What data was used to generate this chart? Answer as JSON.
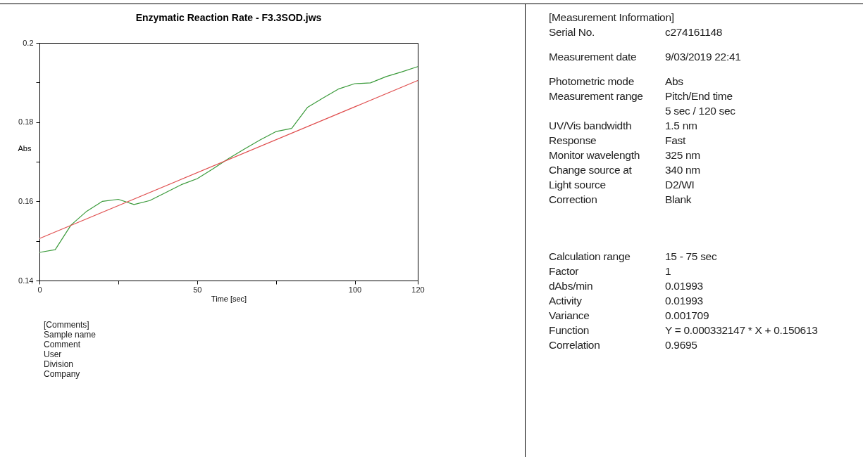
{
  "chart_data": [
    {
      "type": "line",
      "title": "Enzymatic Reaction Rate - F3.3SOD.jws",
      "xlabel": "Time [sec]",
      "ylabel": "Abs",
      "x": [
        0,
        5,
        10,
        15,
        20,
        25,
        30,
        35,
        40,
        45,
        50,
        55,
        60,
        65,
        70,
        75,
        80,
        85,
        90,
        95,
        100,
        105,
        110,
        115,
        120
      ],
      "series": [
        {
          "color": "#3a9a3a",
          "values": [
            0.1471,
            0.1478,
            0.154,
            0.1575,
            0.16,
            0.1605,
            0.1592,
            0.1602,
            0.1622,
            0.1642,
            0.1657,
            0.1682,
            0.1708,
            0.1732,
            0.1755,
            0.1776,
            0.1784,
            0.1837,
            0.1861,
            0.1884,
            0.1897,
            0.1899,
            0.1915,
            0.1927,
            0.194
          ]
        },
        {
          "type": "line",
          "color": "#e05050",
          "x": [
            0,
            120
          ],
          "values": [
            0.1506,
            0.1905
          ]
        }
      ],
      "xlim": [
        0,
        120
      ],
      "xticks": [
        0,
        {
          "value": 25,
          "label": null
        },
        50,
        {
          "value": 75,
          "label": null
        },
        100,
        120
      ],
      "ylim": [
        0.14,
        0.2
      ],
      "yticks": [
        0.14,
        {
          "value": 0.15,
          "label": null
        },
        0.16,
        {
          "value": 0.17,
          "label": null
        },
        0.18,
        {
          "value": 0.19,
          "label": null
        },
        0.2
      ],
      "annotations": [
        "[Comments]",
        "Sample name",
        "Comment",
        "User",
        "Division",
        "Company"
      ]
    },
    {
      "type": "other",
      "title": "[Measurement Information]",
      "annotations": [
        "Serial No.\tc274161148",
        "Measurement date\t9/03/2019 22:41",
        "Photometric mode\tAbs",
        "Measurement range\tPitch/End time",
        "\t5 sec / 120 sec",
        "UV/Vis bandwidth\t1.5 nm",
        "Response\tFast",
        "Monitor wavelength\t325 nm",
        "Change source at\t340 nm",
        "Light source\tD2/WI",
        "Correction\tBlank",
        "Calculation range\t15 - 75 sec",
        "Factor\t1",
        "dAbs/min\t0.01993",
        "Activity\t0.01993",
        "Variance\t0.001709",
        "Function\tY = 0.000332147 * X + 0.150613",
        "Correlation\t0.9695"
      ]
    }
  ]
}
